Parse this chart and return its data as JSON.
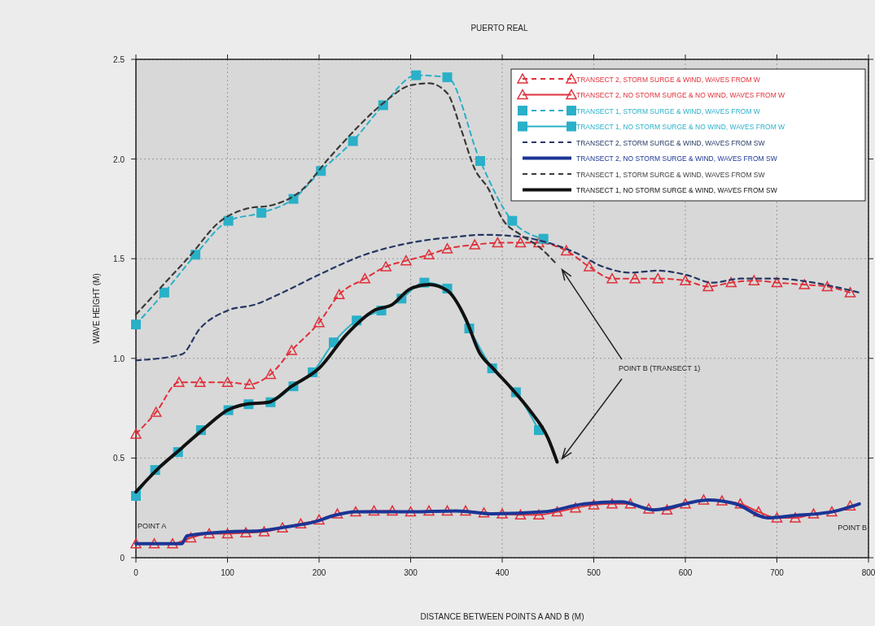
{
  "chart_data": {
    "type": "line",
    "title": "PUERTO REAL",
    "xlabel": "DISTANCE BETWEEN POINTS A AND B (M)",
    "ylabel": "WAVE HEIGHT (M)",
    "xlim": [
      0,
      800
    ],
    "xticks": [
      0,
      100,
      200,
      300,
      400,
      500,
      600,
      700,
      800
    ],
    "ylim": [
      0,
      2.5
    ],
    "yticks": [
      0,
      {
        "value": 0.5,
        "label": "0.5"
      },
      {
        "value": 1,
        "label": "1.0"
      },
      {
        "value": 1.5,
        "label": "1.5"
      },
      {
        "value": 2,
        "label": "2.0"
      },
      {
        "value": 2.5,
        "label": "2.5"
      }
    ],
    "grid": true,
    "legend": "top right",
    "annotations": [
      "POINT A",
      "POINT B",
      "POINT B (TRANSECT 1)"
    ],
    "series": [
      {
        "name": "TRANSECT 2, STORM SURGE & WIND, WAVES FROM W",
        "color": "#e0303a",
        "marker": "triangle",
        "line_style": "dashed",
        "x": [
          0,
          22,
          47,
          70,
          100,
          124,
          147,
          170,
          200,
          222,
          250,
          273,
          295,
          320,
          340,
          370,
          395,
          420,
          440,
          470,
          495,
          520,
          545,
          570,
          600,
          625,
          650,
          675,
          700,
          730,
          755,
          780
        ],
        "values": [
          0.62,
          0.73,
          0.88,
          0.88,
          0.88,
          0.87,
          0.92,
          1.04,
          1.18,
          1.32,
          1.4,
          1.46,
          1.49,
          1.52,
          1.55,
          1.57,
          1.58,
          1.58,
          1.58,
          1.54,
          1.46,
          1.4,
          1.4,
          1.4,
          1.39,
          1.36,
          1.38,
          1.39,
          1.38,
          1.37,
          1.36,
          1.33
        ]
      },
      {
        "name": "TRANSECT 2, NO STORM SURGE & NO WIND, WAVES FROM W",
        "color": "#e0303a",
        "marker": "triangle",
        "line_style": "solid",
        "x": [
          0,
          20,
          40,
          60,
          80,
          100,
          120,
          140,
          160,
          180,
          200,
          220,
          240,
          260,
          280,
          300,
          320,
          340,
          360,
          380,
          400,
          420,
          440,
          460,
          480,
          500,
          520,
          540,
          560,
          580,
          600,
          620,
          640,
          660,
          680,
          700,
          720,
          740,
          760,
          780
        ],
        "values": [
          0.07,
          0.07,
          0.07,
          0.1,
          0.12,
          0.12,
          0.125,
          0.13,
          0.15,
          0.17,
          0.19,
          0.22,
          0.23,
          0.235,
          0.235,
          0.23,
          0.235,
          0.235,
          0.235,
          0.225,
          0.22,
          0.215,
          0.215,
          0.23,
          0.25,
          0.265,
          0.27,
          0.27,
          0.245,
          0.24,
          0.27,
          0.29,
          0.285,
          0.27,
          0.23,
          0.2,
          0.2,
          0.22,
          0.23,
          0.26
        ]
      },
      {
        "name": "TRANSECT 1, STORM SURGE & WIND, WAVES FROM W",
        "color": "#2ab0c8",
        "marker": "square",
        "line_style": "dashed",
        "x": [
          0,
          31,
          65,
          101,
          137,
          172,
          202,
          237,
          270,
          306,
          340,
          376,
          411,
          445
        ],
        "values": [
          1.17,
          1.33,
          1.52,
          1.69,
          1.73,
          1.8,
          1.94,
          2.09,
          2.27,
          2.42,
          2.41,
          1.99,
          1.69,
          1.6
        ]
      },
      {
        "name": "TRANSECT 1, NO STORM SURGE & NO WIND, WAVES FROM W",
        "color": "#2ab0c8",
        "marker": "square",
        "line_style": "solid",
        "x": [
          0,
          21,
          46,
          71,
          101,
          123,
          147,
          172,
          193,
          216,
          241,
          268,
          290,
          315,
          340,
          364,
          389,
          415,
          440
        ],
        "values": [
          0.31,
          0.44,
          0.53,
          0.64,
          0.74,
          0.77,
          0.78,
          0.86,
          0.93,
          1.08,
          1.19,
          1.24,
          1.3,
          1.38,
          1.35,
          1.15,
          0.95,
          0.83,
          0.64
        ]
      },
      {
        "name": "TRANSECT 2, STORM SURGE & WIND, WAVES FROM SW",
        "color": "#263763",
        "marker": "none",
        "line_style": "dashed",
        "x": [
          0,
          50,
          70,
          100,
          130,
          160,
          200,
          250,
          300,
          350,
          380,
          420,
          450,
          480,
          510,
          540,
          570,
          600,
          630,
          660,
          700,
          740,
          790
        ],
        "values": [
          0.99,
          1.02,
          1.15,
          1.24,
          1.27,
          1.33,
          1.42,
          1.52,
          1.58,
          1.61,
          1.62,
          1.61,
          1.58,
          1.53,
          1.46,
          1.43,
          1.44,
          1.42,
          1.38,
          1.4,
          1.4,
          1.38,
          1.33
        ]
      },
      {
        "name": "TRANSECT 2, NO STORM SURGE & WIND, WAVES FROM SW",
        "color": "#1b3596",
        "marker": "none",
        "line_style": "solid",
        "x": [
          0,
          50,
          56,
          100,
          135,
          165,
          195,
          215,
          240,
          300,
          350,
          390,
          445,
          490,
          530,
          565,
          625,
          655,
          690,
          715,
          760,
          790
        ],
        "values": [
          0.07,
          0.07,
          0.11,
          0.13,
          0.135,
          0.155,
          0.18,
          0.21,
          0.23,
          0.23,
          0.235,
          0.22,
          0.23,
          0.27,
          0.28,
          0.24,
          0.29,
          0.27,
          0.2,
          0.21,
          0.23,
          0.27
        ]
      },
      {
        "name": "TRANSECT 1, STORM SURGE & WIND, WAVES FROM SW",
        "color": "#3a3a3a",
        "marker": "none",
        "line_style": "dashed",
        "x": [
          0,
          30,
          60,
          90,
          120,
          150,
          180,
          210,
          240,
          270,
          300,
          320,
          340,
          355,
          370,
          385,
          400,
          420,
          440,
          460
        ],
        "values": [
          1.22,
          1.37,
          1.52,
          1.68,
          1.75,
          1.77,
          1.84,
          2.0,
          2.15,
          2.28,
          2.37,
          2.38,
          2.33,
          2.15,
          1.95,
          1.85,
          1.7,
          1.62,
          1.56,
          1.47
        ]
      },
      {
        "name": "TRANSECT 1, NO STORM SURGE & WIND, WAVES FROM SW",
        "color": "#111111",
        "marker": "none",
        "line_style": "solid",
        "x": [
          0,
          25,
          50,
          75,
          100,
          120,
          145,
          170,
          200,
          230,
          260,
          280,
          300,
          320,
          340,
          360,
          375,
          390,
          410,
          430,
          450,
          460
        ],
        "values": [
          0.33,
          0.45,
          0.55,
          0.65,
          0.74,
          0.77,
          0.78,
          0.86,
          0.95,
          1.12,
          1.24,
          1.27,
          1.35,
          1.37,
          1.34,
          1.2,
          1.03,
          0.95,
          0.85,
          0.74,
          0.6,
          0.48
        ]
      }
    ]
  }
}
